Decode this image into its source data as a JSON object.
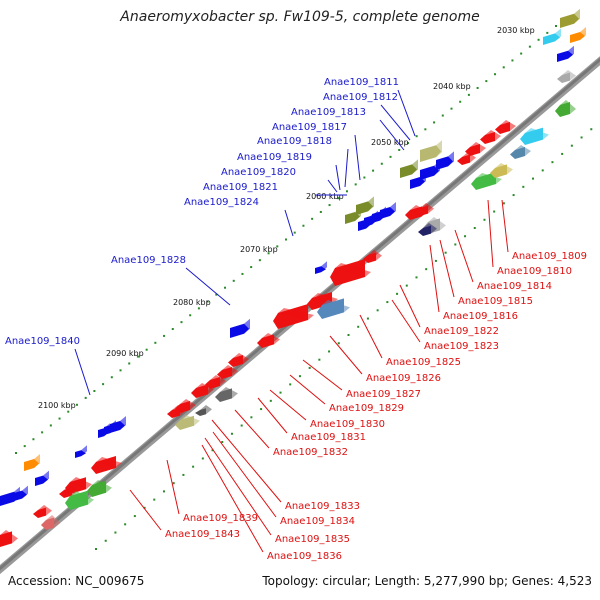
{
  "title": "Anaeromyxobacter sp. Fw109-5, complete genome",
  "footer": {
    "accession": "Accession: NC_009675",
    "summary": "Topology: circular; Length: 5,277,990 bp; Genes: 4,523"
  },
  "scale_labels": [
    "2030 kbp",
    "2040 kbp",
    "2050 kbp",
    "2060 kbp",
    "2070 kbp",
    "2080 kbp",
    "2090 kbp",
    "2100 kbp"
  ],
  "forward_genes": [
    "Anae109_1811",
    "Anae109_1812",
    "Anae109_1813",
    "Anae109_1817",
    "Anae109_1818",
    "Anae109_1819",
    "Anae109_1820",
    "Anae109_1821",
    "Anae109_1824",
    "Anae109_1828",
    "Anae109_1840"
  ],
  "reverse_genes": [
    "Anae109_1809",
    "Anae109_1810",
    "Anae109_1814",
    "Anae109_1815",
    "Anae109_1816",
    "Anae109_1822",
    "Anae109_1823",
    "Anae109_1825",
    "Anae109_1826",
    "Anae109_1827",
    "Anae109_1829",
    "Anae109_1830",
    "Anae109_1831",
    "Anae109_1832",
    "Anae109_1833",
    "Anae109_1834",
    "Anae109_1835",
    "Anae109_1836",
    "Anae109_1839",
    "Anae109_1843"
  ],
  "colors": {
    "forward_label": "#1a1acc",
    "reverse_label": "#dd1111",
    "forward_gene": "#0a0ae6",
    "reverse_gene": "#ee1111",
    "backbone": "#777777",
    "scale_dot": "#2a8a2a"
  }
}
